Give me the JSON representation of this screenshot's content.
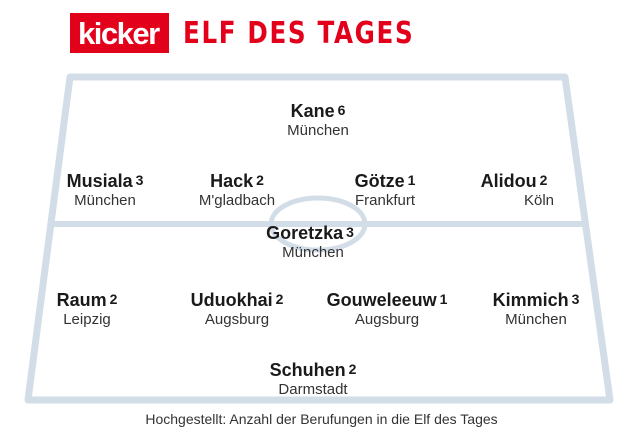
{
  "header": {
    "logo": "kicker",
    "title": "ELF DES TAGES"
  },
  "players": [
    {
      "name": "Kane",
      "count": "6",
      "club": "München"
    },
    {
      "name": "Musiala",
      "count": "3",
      "club": "München"
    },
    {
      "name": "Hack",
      "count": "2",
      "club": "M'gladbach"
    },
    {
      "name": "Götze",
      "count": "1",
      "club": "Frankfurt"
    },
    {
      "name": "Alidou",
      "count": "2",
      "club": "Köln"
    },
    {
      "name": "Goretzka",
      "count": "3",
      "club": "München"
    },
    {
      "name": "Raum",
      "count": "2",
      "club": "Leipzig"
    },
    {
      "name": "Uduokhai",
      "count": "2",
      "club": "Augsburg"
    },
    {
      "name": "Gouweleeuw",
      "count": "1",
      "club": "Augsburg"
    },
    {
      "name": "Kimmich",
      "count": "3",
      "club": "München"
    },
    {
      "name": "Schuhen",
      "count": "2",
      "club": "Darmstadt"
    }
  ],
  "footnote": "Hochgestellt: Anzahl der Berufungen in die Elf des Tages",
  "colors": {
    "brand_red": "#e3001b",
    "field_lines": "#d3dde8"
  }
}
